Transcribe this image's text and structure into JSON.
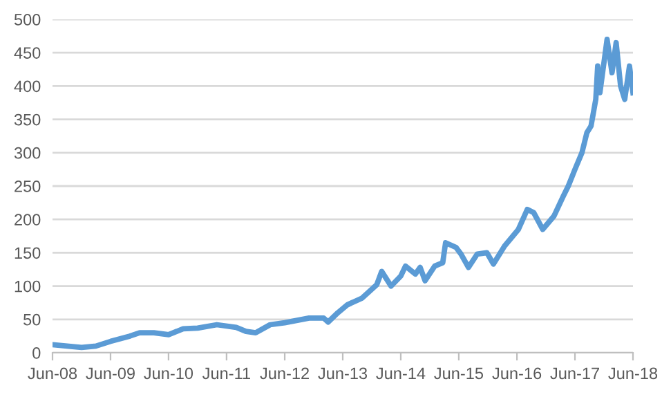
{
  "chart_data": {
    "type": "line",
    "grid": "y",
    "legend": false,
    "marker": "none",
    "line_style": "solid",
    "xlim": [
      "2008-06-01",
      "2018-06-01"
    ],
    "xticks": [
      {
        "value": "2008-06-01",
        "label": "Jun-08"
      },
      {
        "value": "2009-06-01",
        "label": "Jun-09"
      },
      {
        "value": "2010-06-01",
        "label": "Jun-10"
      },
      {
        "value": "2011-06-01",
        "label": "Jun-11"
      },
      {
        "value": "2012-06-01",
        "label": "Jun-12"
      },
      {
        "value": "2013-06-01",
        "label": "Jun-13"
      },
      {
        "value": "2014-06-01",
        "label": "Jun-14"
      },
      {
        "value": "2015-06-01",
        "label": "Jun-15"
      },
      {
        "value": "2016-06-01",
        "label": "Jun-16"
      },
      {
        "value": "2017-06-01",
        "label": "Jun-17"
      },
      {
        "value": "2018-06-01",
        "label": "Jun-18"
      }
    ],
    "ylim": [
      0,
      500
    ],
    "yticks": [
      0,
      50,
      100,
      150,
      200,
      250,
      300,
      350,
      400,
      450,
      500
    ],
    "x": [
      "2008-06-01",
      "2008-09-01",
      "2008-12-01",
      "2009-03-01",
      "2009-06-01",
      "2009-10-01",
      "2009-12-01",
      "2010-03-01",
      "2010-06-01",
      "2010-09-01",
      "2010-12-01",
      "2011-04-01",
      "2011-08-01",
      "2011-10-01",
      "2011-12-01",
      "2012-03-01",
      "2012-06-01",
      "2012-11-01",
      "2013-02-01",
      "2013-03-01",
      "2013-05-01",
      "2013-07-01",
      "2013-10-01",
      "2014-01-01",
      "2014-02-01",
      "2014-04-01",
      "2014-06-01",
      "2014-07-01",
      "2014-09-01",
      "2014-10-01",
      "2014-11-01",
      "2015-01-01",
      "2015-02-20",
      "2015-03-10",
      "2015-05-15",
      "2015-06-15",
      "2015-08-01",
      "2015-09-25",
      "2015-11-25",
      "2016-01-05",
      "2016-03-15",
      "2016-06-10",
      "2016-08-05",
      "2016-09-15",
      "2016-11-10",
      "2017-01-20",
      "2017-03-20",
      "2017-04-20",
      "2017-06-01",
      "2017-07-15",
      "2017-08-15",
      "2017-09-10",
      "2017-10-10",
      "2017-10-22",
      "2017-11-05",
      "2017-12-20",
      "2018-01-20",
      "2018-02-15",
      "2018-03-15",
      "2018-04-10",
      "2018-05-10",
      "2018-06-01"
    ],
    "series": [
      {
        "color": "#5b9bd5",
        "values": [
          12,
          10,
          8,
          10,
          17,
          25,
          30,
          30,
          27,
          36,
          37,
          42,
          38,
          32,
          30,
          42,
          45,
          52,
          52,
          46,
          60,
          72,
          82,
          102,
          122,
          100,
          115,
          130,
          118,
          128,
          108,
          130,
          135,
          165,
          158,
          148,
          128,
          148,
          150,
          133,
          160,
          185,
          215,
          210,
          185,
          205,
          235,
          250,
          275,
          300,
          330,
          340,
          380,
          430,
          390,
          470,
          420,
          465,
          400,
          380,
          430,
          390
        ]
      }
    ]
  }
}
